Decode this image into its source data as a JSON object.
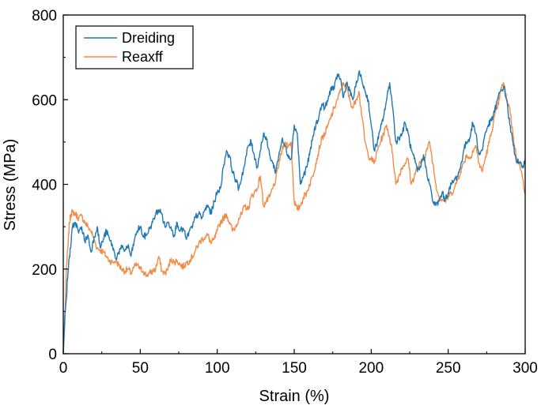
{
  "chart_data": {
    "type": "line",
    "title": "",
    "xlabel": "Strain (%)",
    "ylabel": "Stress (MPa)",
    "xlim": [
      0,
      300
    ],
    "ylim": [
      0,
      800
    ],
    "xticks": [
      0,
      50,
      100,
      150,
      200,
      250,
      300
    ],
    "yticks": [
      0,
      200,
      400,
      600,
      800
    ],
    "xtick_labels": [
      "0",
      "50",
      "100",
      "150",
      "200",
      "250",
      "300"
    ],
    "ytick_labels": [
      "0",
      "200",
      "400",
      "600",
      "800"
    ],
    "grid": false,
    "legend_position": "top-left",
    "series": [
      {
        "name": "Dreiding",
        "color": "#1f77b4",
        "x": [
          0,
          1,
          2,
          3,
          4,
          5,
          6,
          8,
          10,
          12,
          14,
          16,
          18,
          20,
          22,
          24,
          26,
          28,
          30,
          32,
          34,
          36,
          38,
          40,
          42,
          44,
          46,
          48,
          50,
          52,
          54,
          56,
          58,
          60,
          62,
          64,
          66,
          68,
          70,
          72,
          74,
          76,
          78,
          80,
          82,
          84,
          86,
          88,
          90,
          92,
          94,
          96,
          98,
          100,
          102,
          104,
          106,
          108,
          110,
          112,
          114,
          116,
          118,
          120,
          122,
          124,
          126,
          128,
          130,
          132,
          134,
          136,
          138,
          140,
          142,
          144,
          146,
          148,
          150,
          152,
          154,
          156,
          158,
          160,
          162,
          164,
          166,
          168,
          170,
          172,
          174,
          176,
          178,
          180,
          182,
          184,
          186,
          188,
          190,
          192,
          194,
          196,
          198,
          200,
          202,
          204,
          206,
          208,
          210,
          212,
          214,
          216,
          218,
          220,
          222,
          224,
          226,
          228,
          230,
          232,
          234,
          236,
          238,
          240,
          242,
          244,
          246,
          248,
          250,
          252,
          254,
          256,
          258,
          260,
          262,
          264,
          266,
          268,
          270,
          272,
          274,
          276,
          278,
          280,
          282,
          284,
          286,
          288,
          290,
          292,
          294,
          296,
          298,
          300
        ],
        "y": [
          0,
          90,
          130,
          190,
          230,
          260,
          300,
          310,
          285,
          300,
          265,
          280,
          240,
          275,
          300,
          250,
          270,
          290,
          270,
          255,
          225,
          240,
          250,
          245,
          255,
          230,
          265,
          290,
          300,
          275,
          280,
          295,
          310,
          330,
          340,
          330,
          300,
          310,
          300,
          280,
          310,
          290,
          295,
          270,
          290,
          300,
          325,
          330,
          320,
          340,
          350,
          330,
          360,
          380,
          390,
          440,
          480,
          465,
          430,
          410,
          390,
          420,
          450,
          490,
          500,
          470,
          440,
          480,
          520,
          505,
          470,
          450,
          430,
          470,
          505,
          490,
          470,
          460,
          540,
          520,
          400,
          420,
          440,
          470,
          510,
          540,
          560,
          590,
          580,
          600,
          630,
          625,
          660,
          650,
          605,
          640,
          620,
          600,
          630,
          665,
          645,
          620,
          600,
          540,
          480,
          500,
          530,
          560,
          600,
          640,
          580,
          500,
          510,
          520,
          545,
          520,
          480,
          460,
          430,
          440,
          470,
          430,
          400,
          360,
          350,
          360,
          380,
          365,
          380,
          400,
          410,
          420,
          440,
          480,
          500,
          510,
          545,
          520,
          470,
          480,
          520,
          540,
          550,
          570,
          600,
          620,
          630,
          600,
          540,
          500,
          460,
          450,
          440,
          460
        ]
      },
      {
        "name": "Reaxff",
        "color": "#f28c49",
        "x": [
          0,
          1,
          2,
          3,
          4,
          5,
          6,
          8,
          10,
          12,
          14,
          16,
          18,
          20,
          22,
          24,
          26,
          28,
          30,
          32,
          34,
          36,
          38,
          40,
          42,
          44,
          46,
          48,
          50,
          52,
          54,
          56,
          58,
          60,
          62,
          64,
          66,
          68,
          70,
          72,
          74,
          76,
          78,
          80,
          82,
          84,
          86,
          88,
          90,
          92,
          94,
          96,
          98,
          100,
          102,
          104,
          106,
          108,
          110,
          112,
          114,
          116,
          118,
          120,
          122,
          124,
          126,
          128,
          130,
          132,
          134,
          136,
          138,
          140,
          142,
          144,
          146,
          148,
          150,
          152,
          154,
          156,
          158,
          160,
          162,
          164,
          166,
          168,
          170,
          172,
          174,
          176,
          178,
          180,
          182,
          184,
          186,
          188,
          190,
          192,
          194,
          196,
          198,
          200,
          202,
          204,
          206,
          208,
          210,
          212,
          214,
          216,
          218,
          220,
          222,
          224,
          226,
          228,
          230,
          232,
          234,
          236,
          238,
          240,
          242,
          244,
          246,
          248,
          250,
          252,
          254,
          256,
          258,
          260,
          262,
          264,
          266,
          268,
          270,
          272,
          274,
          276,
          278,
          280,
          282,
          284,
          286,
          288,
          290,
          292,
          294,
          296,
          298,
          300
        ],
        "y": [
          0,
          70,
          200,
          250,
          310,
          330,
          335,
          330,
          320,
          325,
          310,
          300,
          290,
          270,
          250,
          245,
          240,
          230,
          220,
          215,
          220,
          210,
          200,
          195,
          200,
          190,
          205,
          210,
          200,
          195,
          185,
          190,
          195,
          200,
          230,
          195,
          190,
          200,
          225,
          215,
          220,
          210,
          205,
          215,
          220,
          230,
          245,
          260,
          270,
          275,
          280,
          260,
          270,
          290,
          310,
          320,
          330,
          310,
          290,
          300,
          320,
          330,
          350,
          340,
          370,
          380,
          390,
          420,
          350,
          360,
          370,
          390,
          410,
          450,
          480,
          500,
          490,
          500,
          360,
          340,
          350,
          370,
          380,
          400,
          420,
          450,
          480,
          510,
          520,
          540,
          560,
          580,
          600,
          620,
          640,
          630,
          600,
          580,
          600,
          620,
          560,
          500,
          470,
          460,
          450,
          480,
          500,
          520,
          540,
          510,
          470,
          400,
          420,
          440,
          450,
          460,
          400,
          420,
          440,
          450,
          460,
          480,
          500,
          450,
          400,
          370,
          365,
          360,
          370,
          380,
          390,
          410,
          430,
          450,
          470,
          460,
          480,
          490,
          450,
          430,
          460,
          490,
          520,
          560,
          580,
          620,
          640,
          600,
          580,
          520,
          470,
          450,
          420,
          380
        ]
      }
    ]
  }
}
